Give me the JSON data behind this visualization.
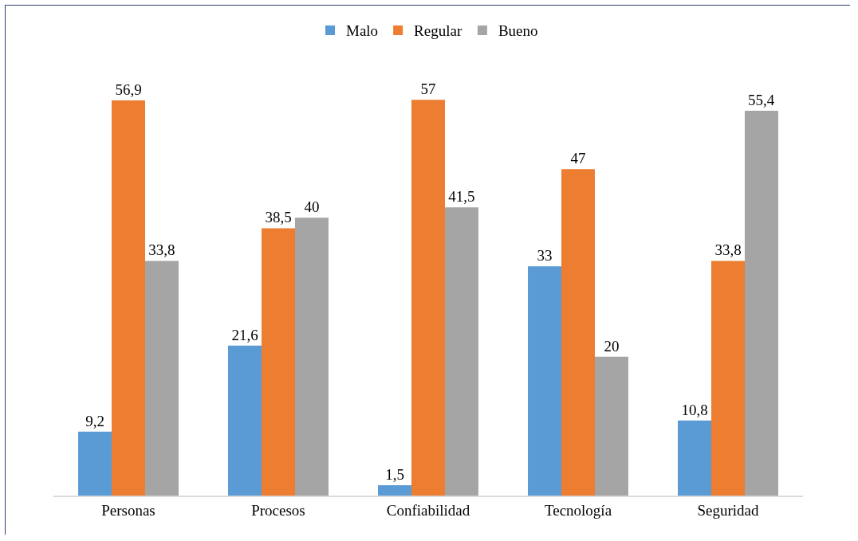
{
  "chart_data": {
    "type": "bar",
    "categories": [
      "Personas",
      "Procesos",
      "Confiabilidad",
      "Tecnología",
      "Seguridad"
    ],
    "series": [
      {
        "name": "Malo",
        "color": "#5b9bd5",
        "values": [
          9.2,
          21.6,
          1.5,
          33,
          10.8
        ],
        "value_labels": [
          "9,2",
          "21,6",
          "1,5",
          "33",
          "10,8"
        ]
      },
      {
        "name": "Regular",
        "color": "#ed7d31",
        "values": [
          56.9,
          38.5,
          57,
          47,
          33.8
        ],
        "value_labels": [
          "56,9",
          "38,5",
          "57",
          "47",
          "33,8"
        ]
      },
      {
        "name": "Bueno",
        "color": "#a5a5a5",
        "values": [
          33.8,
          40,
          41.5,
          20,
          55.4
        ],
        "value_labels": [
          "33,8",
          "40",
          "41,5",
          "20",
          "55,4"
        ]
      }
    ],
    "legend": "top"
  }
}
